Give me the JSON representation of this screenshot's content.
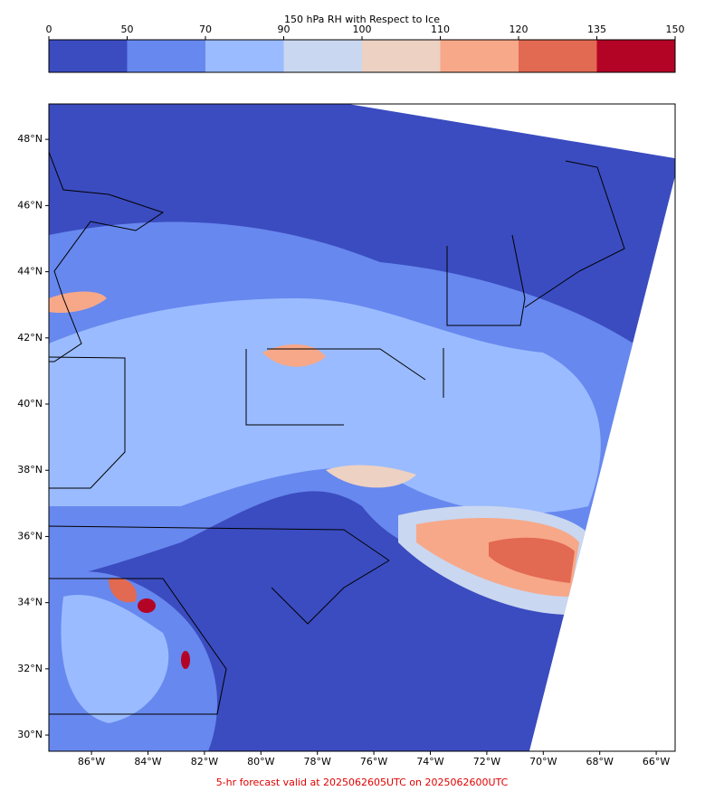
{
  "colorbar": {
    "title": "150 hPa RH with Respect to Ice",
    "bounds": [
      0,
      50,
      70,
      90,
      100,
      110,
      120,
      135,
      150
    ],
    "colors": [
      "#3b4cc0",
      "#6788ee",
      "#9abbff",
      "#c9d7f0",
      "#edd1c2",
      "#f7a889",
      "#e26952",
      "#b40426"
    ]
  },
  "map": {
    "xlim": [
      -87.51,
      -65.33
    ],
    "ylim": [
      29.51,
      49.07
    ],
    "xticks": [
      {
        "value": -86,
        "label": "86°W"
      },
      {
        "value": -84,
        "label": "84°W"
      },
      {
        "value": -82,
        "label": "82°W"
      },
      {
        "value": -80,
        "label": "80°W"
      },
      {
        "value": -78,
        "label": "78°W"
      },
      {
        "value": -76,
        "label": "76°W"
      },
      {
        "value": -74,
        "label": "74°W"
      },
      {
        "value": -72,
        "label": "72°W"
      },
      {
        "value": -70,
        "label": "70°W"
      },
      {
        "value": -68,
        "label": "68°W"
      },
      {
        "value": -66,
        "label": "66°W"
      }
    ],
    "yticks": [
      {
        "value": 30,
        "label": "30°N"
      },
      {
        "value": 32,
        "label": "32°N"
      },
      {
        "value": 34,
        "label": "34°N"
      },
      {
        "value": 36,
        "label": "36°N"
      },
      {
        "value": 38,
        "label": "38°N"
      },
      {
        "value": 40,
        "label": "40°N"
      },
      {
        "value": 42,
        "label": "42°N"
      },
      {
        "value": 44,
        "label": "44°N"
      },
      {
        "value": 46,
        "label": "46°N"
      },
      {
        "value": 48,
        "label": "48°N"
      }
    ]
  },
  "footer": "5-hr forecast valid at 2025062605UTC on 2025062600UTC"
}
